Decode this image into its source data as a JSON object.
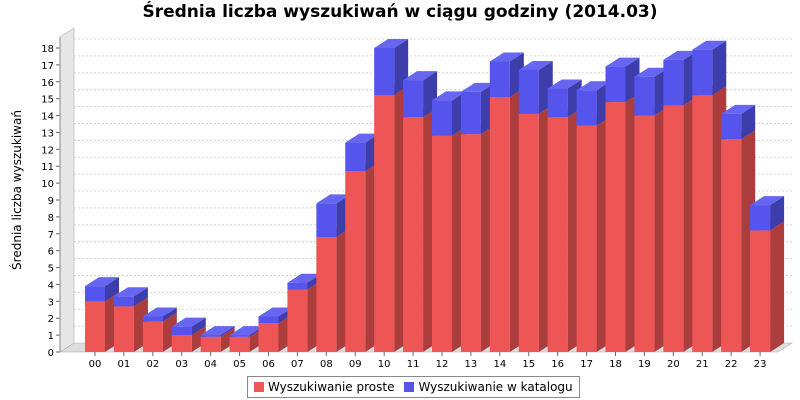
{
  "chart_data": {
    "type": "bar",
    "stacked": true,
    "title": "Średnia liczba wyszukiwań w ciągu godziny (2014.03)",
    "ylabel": "Średnia liczba wyszukiwań",
    "xlabel": "",
    "ylim": [
      0,
      18
    ],
    "yticks": [
      0,
      1,
      2,
      3,
      4,
      5,
      6,
      7,
      8,
      9,
      10,
      11,
      12,
      13,
      14,
      15,
      16,
      17,
      18
    ],
    "grid": true,
    "legend_position": "bottom",
    "categories": [
      "00",
      "01",
      "02",
      "03",
      "04",
      "05",
      "06",
      "07",
      "08",
      "09",
      "10",
      "11",
      "12",
      "13",
      "14",
      "15",
      "16",
      "17",
      "18",
      "19",
      "20",
      "21",
      "22",
      "23"
    ],
    "series": [
      {
        "name": "Wyszukiwanie proste",
        "color": "#ee5555",
        "values": [
          3.0,
          2.7,
          1.8,
          1.0,
          0.9,
          0.9,
          1.7,
          3.7,
          6.8,
          10.7,
          15.2,
          13.9,
          12.8,
          12.9,
          15.1,
          14.1,
          13.9,
          13.4,
          14.8,
          14.0,
          14.6,
          15.2,
          12.6,
          7.2
        ]
      },
      {
        "name": "Wyszukiwanie w katalogu",
        "color": "#5555ee",
        "values": [
          0.9,
          0.6,
          0.3,
          0.5,
          0.1,
          0.1,
          0.4,
          0.4,
          2.0,
          1.7,
          2.8,
          2.2,
          2.1,
          2.5,
          2.1,
          2.6,
          1.7,
          2.1,
          2.1,
          2.3,
          2.7,
          2.7,
          1.5,
          1.5
        ]
      }
    ]
  }
}
